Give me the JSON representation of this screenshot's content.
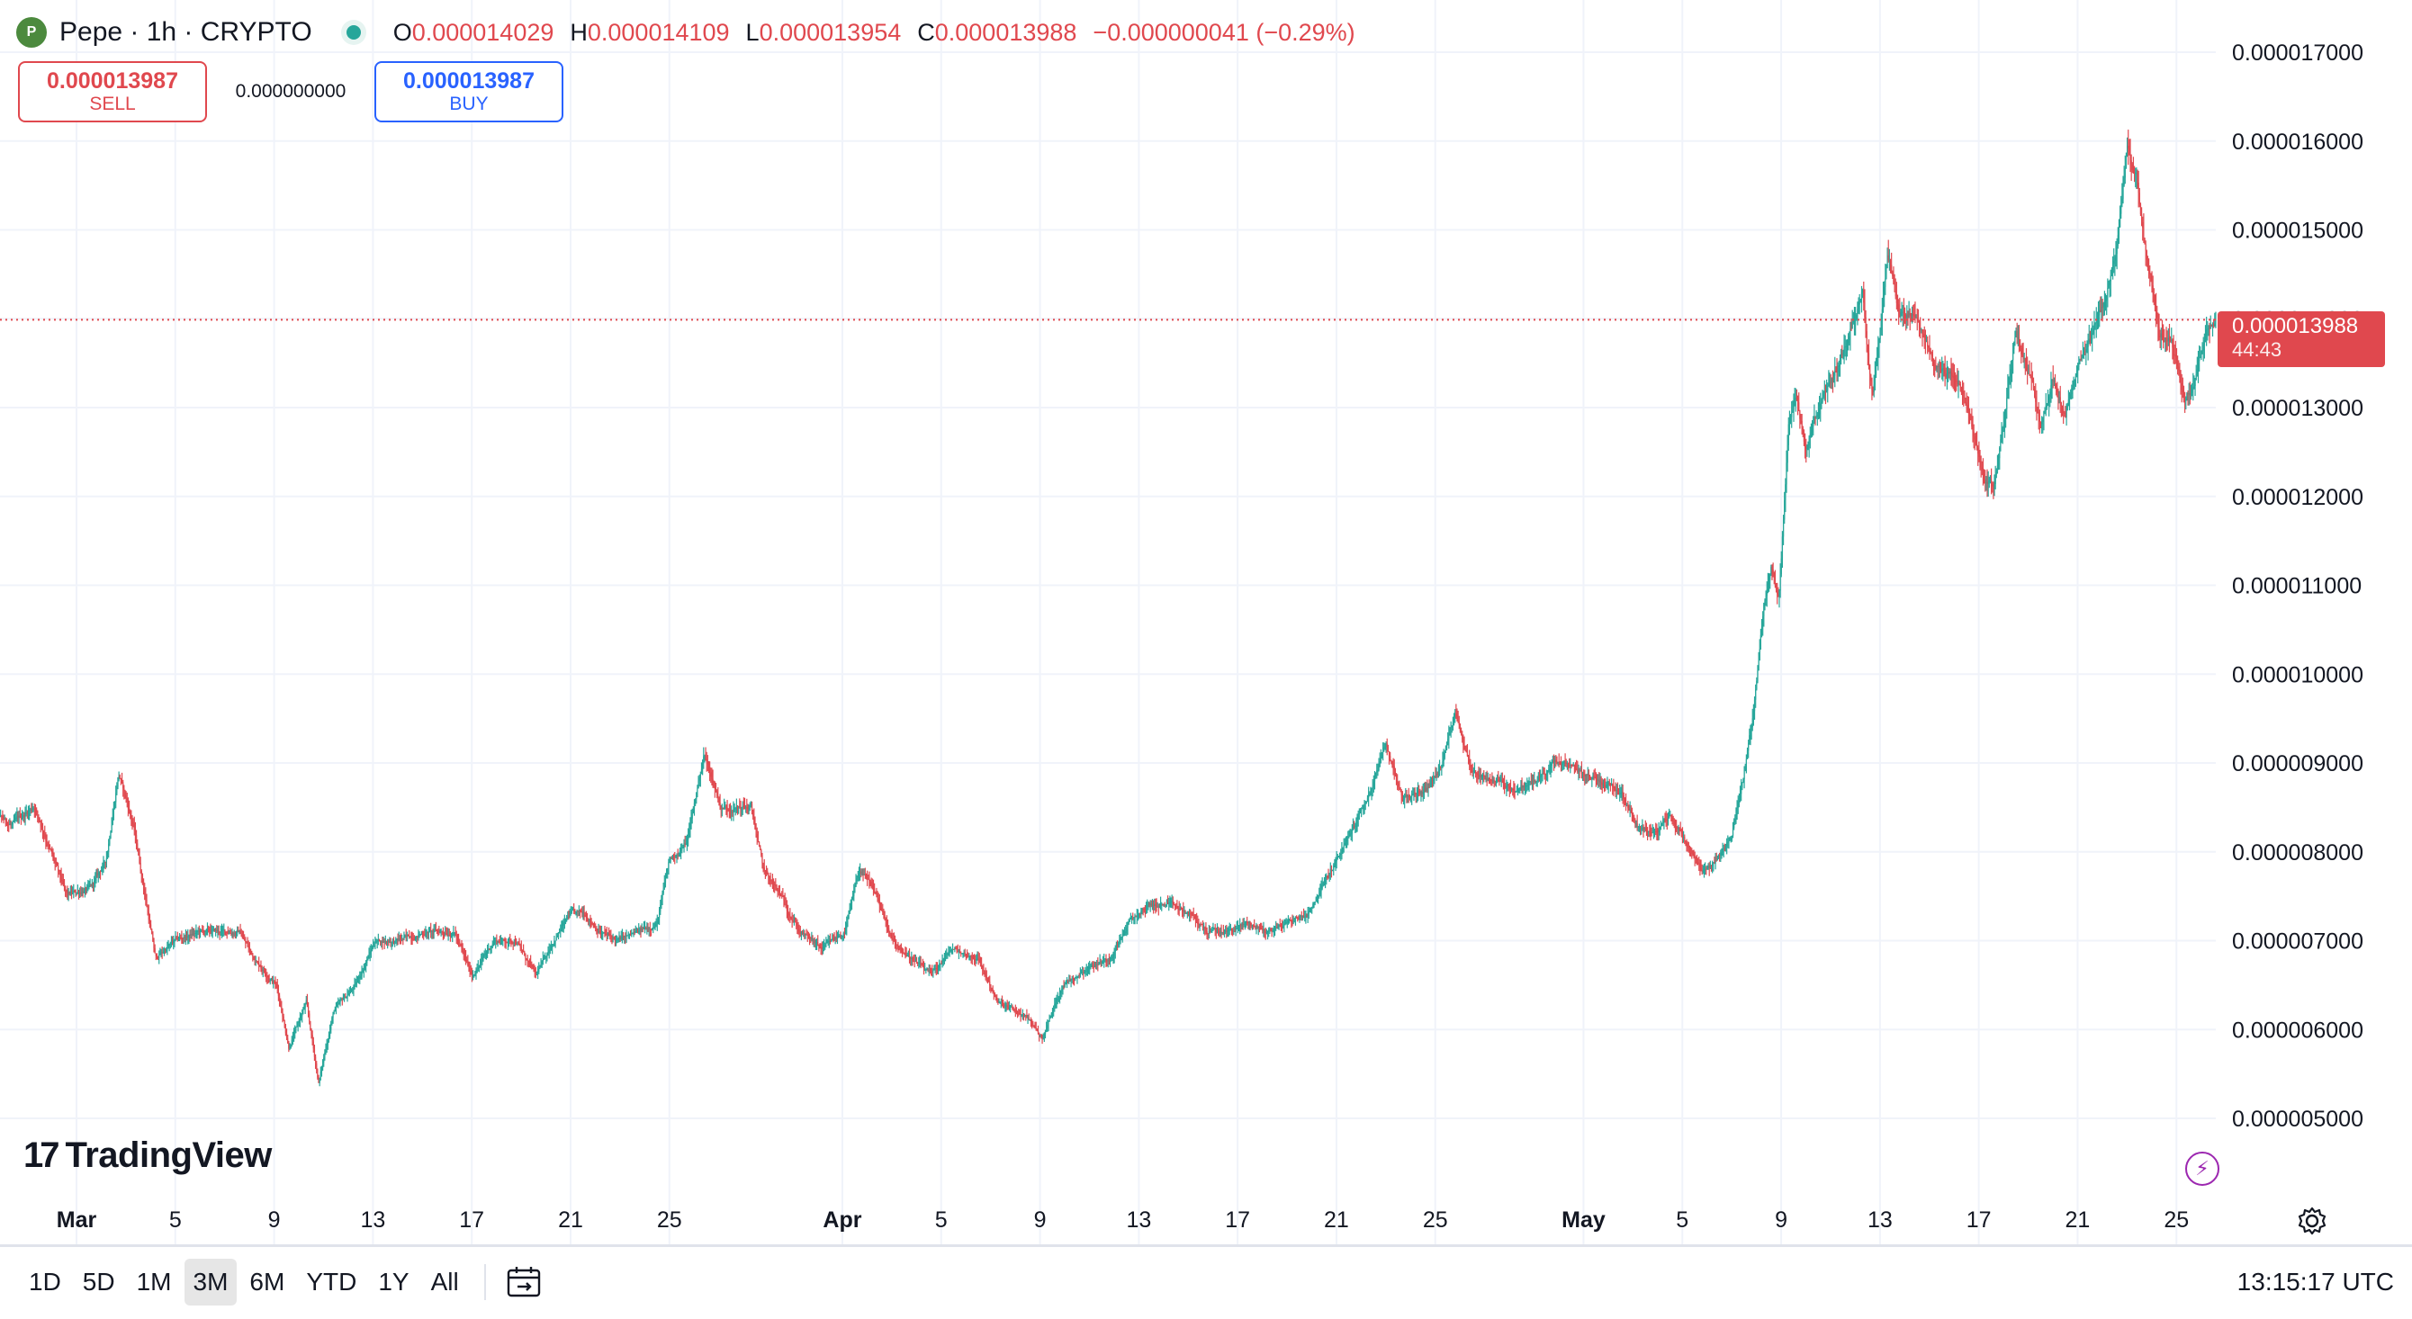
{
  "header": {
    "symbol_title": "Pepe · 1h · CRYPTO",
    "logo_glyph": "P",
    "ohlc": [
      {
        "key": "O",
        "value": "0.000014029"
      },
      {
        "key": "H",
        "value": "0.000014109"
      },
      {
        "key": "L",
        "value": "0.000013954"
      },
      {
        "key": "C",
        "value": "0.000013988"
      },
      {
        "key": "",
        "value": "−0.000000041 (−0.29%)"
      }
    ]
  },
  "trade": {
    "sell_price": "0.000013987",
    "sell_label": "SELL",
    "spread": "0.000000000",
    "buy_price": "0.000013987",
    "buy_label": "BUY"
  },
  "price_tag": {
    "price": "0.000013988",
    "countdown": "44:43"
  },
  "brand": {
    "mark": "17",
    "name": "TradingView"
  },
  "bottom_bar": {
    "ranges": [
      "1D",
      "5D",
      "1M",
      "3M",
      "6M",
      "YTD",
      "1Y",
      "All"
    ],
    "active_range": "3M",
    "clock": "13:15:17 UTC"
  },
  "colors": {
    "up": "#26a69a",
    "down": "#e0484e",
    "grid": "#f0f3fa",
    "axis_text": "#131722"
  },
  "chart_data": {
    "type": "candlestick",
    "title": "Pepe · 1h · CRYPTO",
    "xlabel": "",
    "ylabel": "",
    "ylim": [
      4.6e-06,
      1.74e-05
    ],
    "y_ticks": [
      "0.000017000",
      "0.000016000",
      "0.000015000",
      "0.000014000",
      "0.000013000",
      "0.000012000",
      "0.000011000",
      "0.000010000",
      "0.000009000",
      "0.000008000",
      "0.000007000",
      "0.000006000",
      "0.000005000"
    ],
    "y_tick_values": [
      1.7e-05,
      1.6e-05,
      1.5e-05,
      1.4e-05,
      1.3e-05,
      1.2e-05,
      1.1e-05,
      1e-05,
      9e-06,
      8e-06,
      7e-06,
      6e-06,
      5e-06
    ],
    "x_ticks": [
      {
        "label": "Mar",
        "day": 1,
        "major": true
      },
      {
        "label": "5",
        "day": 5,
        "major": false
      },
      {
        "label": "9",
        "day": 9,
        "major": false
      },
      {
        "label": "13",
        "day": 13,
        "major": false
      },
      {
        "label": "17",
        "day": 17,
        "major": false
      },
      {
        "label": "21",
        "day": 21,
        "major": false
      },
      {
        "label": "25",
        "day": 25,
        "major": false
      },
      {
        "label": "Apr",
        "day": 32,
        "major": true
      },
      {
        "label": "5",
        "day": 36,
        "major": false
      },
      {
        "label": "9",
        "day": 40,
        "major": false
      },
      {
        "label": "13",
        "day": 44,
        "major": false
      },
      {
        "label": "17",
        "day": 48,
        "major": false
      },
      {
        "label": "21",
        "day": 52,
        "major": false
      },
      {
        "label": "25",
        "day": 56,
        "major": false
      },
      {
        "label": "May",
        "day": 62,
        "major": true
      },
      {
        "label": "5",
        "day": 66,
        "major": false
      },
      {
        "label": "9",
        "day": 70,
        "major": false
      },
      {
        "label": "13",
        "day": 74,
        "major": false
      },
      {
        "label": "17",
        "day": 78,
        "major": false
      },
      {
        "label": "21",
        "day": 82,
        "major": false
      },
      {
        "label": "25",
        "day": 86,
        "major": false
      }
    ],
    "x_range_days": [
      -2.8,
      89.0
    ],
    "last_price": 1.3988e-05,
    "anchors": [
      [
        -2.7,
        8.45e-06
      ],
      [
        -1.6,
        8.3e-06
      ],
      [
        -0.7,
        8.52e-06
      ],
      [
        0.6,
        7.5e-06
      ],
      [
        1.6,
        7.6e-06
      ],
      [
        2.2,
        7.9e-06
      ],
      [
        2.7,
        8.9e-06
      ],
      [
        3.3,
        8.3e-06
      ],
      [
        4.2,
        6.8e-06
      ],
      [
        5.0,
        7e-06
      ],
      [
        6.0,
        7.1e-06
      ],
      [
        6.8,
        7.1e-06
      ],
      [
        7.6,
        7.1e-06
      ],
      [
        8.2,
        6.8e-06
      ],
      [
        9.1,
        6.5e-06
      ],
      [
        9.6,
        5.8e-06
      ],
      [
        10.3,
        6.3e-06
      ],
      [
        10.8,
        5.4e-06
      ],
      [
        11.4,
        6.2e-06
      ],
      [
        12.3,
        6.5e-06
      ],
      [
        13.1,
        7e-06
      ],
      [
        14.0,
        7e-06
      ],
      [
        15.2,
        7.1e-06
      ],
      [
        16.3,
        7.1e-06
      ],
      [
        17.0,
        6.6e-06
      ],
      [
        17.9,
        7e-06
      ],
      [
        18.8,
        7e-06
      ],
      [
        19.6,
        6.6e-06
      ],
      [
        20.3,
        7e-06
      ],
      [
        21.0,
        7.3e-06
      ],
      [
        21.6,
        7.3e-06
      ],
      [
        22.2,
        7.1e-06
      ],
      [
        22.9,
        7e-06
      ],
      [
        23.8,
        7.1e-06
      ],
      [
        24.5,
        7.2e-06
      ],
      [
        25.0,
        7.9e-06
      ],
      [
        25.7,
        8.1e-06
      ],
      [
        26.4,
        9.1e-06
      ],
      [
        27.1,
        8.5e-06
      ],
      [
        28.3,
        8.5e-06
      ],
      [
        28.8,
        7.8e-06
      ],
      [
        29.5,
        7.5e-06
      ],
      [
        30.3,
        7.1e-06
      ],
      [
        31.2,
        6.9e-06
      ],
      [
        32.1,
        7.1e-06
      ],
      [
        32.7,
        7.8e-06
      ],
      [
        33.4,
        7.5e-06
      ],
      [
        34.0,
        7e-06
      ],
      [
        34.8,
        6.8e-06
      ],
      [
        35.6,
        6.6e-06
      ],
      [
        36.4,
        6.9e-06
      ],
      [
        37.5,
        6.8e-06
      ],
      [
        38.3,
        6.3e-06
      ],
      [
        39.0,
        6.2e-06
      ],
      [
        39.6,
        6.1e-06
      ],
      [
        40.1,
        5.9e-06
      ],
      [
        40.9,
        6.5e-06
      ],
      [
        41.9,
        6.7e-06
      ],
      [
        42.8,
        6.8e-06
      ],
      [
        43.6,
        7.2e-06
      ],
      [
        44.4,
        7.4e-06
      ],
      [
        45.2,
        7.4e-06
      ],
      [
        46.0,
        7.3e-06
      ],
      [
        46.8,
        7.1e-06
      ],
      [
        47.6,
        7.1e-06
      ],
      [
        48.4,
        7.2e-06
      ],
      [
        49.2,
        7.1e-06
      ],
      [
        50.0,
        7.2e-06
      ],
      [
        50.8,
        7.3e-06
      ],
      [
        51.6,
        7.7e-06
      ],
      [
        52.4,
        8.1e-06
      ],
      [
        53.4,
        8.7e-06
      ],
      [
        54.0,
        9.2e-06
      ],
      [
        54.7,
        8.6e-06
      ],
      [
        55.6,
        8.7e-06
      ],
      [
        56.3,
        9e-06
      ],
      [
        56.8,
        9.6e-06
      ],
      [
        57.5,
        8.9e-06
      ],
      [
        58.5,
        8.8e-06
      ],
      [
        59.3,
        8.7e-06
      ],
      [
        60.1,
        8.8e-06
      ],
      [
        60.9,
        9e-06
      ],
      [
        61.8,
        8.9e-06
      ],
      [
        62.7,
        8.8e-06
      ],
      [
        63.5,
        8.7e-06
      ],
      [
        64.2,
        8.3e-06
      ],
      [
        64.9,
        8.2e-06
      ],
      [
        65.5,
        8.4e-06
      ],
      [
        66.2,
        8.1e-06
      ],
      [
        66.8,
        7.8e-06
      ],
      [
        67.4,
        7.9e-06
      ],
      [
        68.0,
        8.2e-06
      ],
      [
        68.5,
        8.9e-06
      ],
      [
        68.9,
        9.6e-06
      ],
      [
        69.3,
        1.08e-05
      ],
      [
        69.6,
        1.12e-05
      ],
      [
        69.9,
        1.08e-05
      ],
      [
        70.3,
        1.28e-05
      ],
      [
        70.6,
        1.31e-05
      ],
      [
        71.0,
        1.26e-05
      ],
      [
        71.5,
        1.3e-05
      ],
      [
        72.1,
        1.33e-05
      ],
      [
        72.7,
        1.38e-05
      ],
      [
        73.3,
        1.43e-05
      ],
      [
        73.7,
        1.31e-05
      ],
      [
        74.3,
        1.48e-05
      ],
      [
        74.8,
        1.41e-05
      ],
      [
        75.4,
        1.4e-05
      ],
      [
        76.0,
        1.36e-05
      ],
      [
        76.6,
        1.34e-05
      ],
      [
        77.2,
        1.33e-05
      ],
      [
        77.7,
        1.28e-05
      ],
      [
        78.2,
        1.22e-05
      ],
      [
        78.6,
        1.21e-05
      ],
      [
        79.0,
        1.28e-05
      ],
      [
        79.5,
        1.39e-05
      ],
      [
        80.0,
        1.34e-05
      ],
      [
        80.5,
        1.29e-05
      ],
      [
        81.0,
        1.33e-05
      ],
      [
        81.5,
        1.29e-05
      ],
      [
        82.0,
        1.34e-05
      ],
      [
        82.5,
        1.37e-05
      ],
      [
        83.1,
        1.42e-05
      ],
      [
        83.6,
        1.48e-05
      ],
      [
        84.0,
        1.59e-05
      ],
      [
        84.4,
        1.56e-05
      ],
      [
        84.8,
        1.47e-05
      ],
      [
        85.3,
        1.38e-05
      ],
      [
        85.8,
        1.38e-05
      ],
      [
        86.3,
        1.31e-05
      ],
      [
        86.7,
        1.32e-05
      ],
      [
        87.2,
        1.39e-05
      ],
      [
        87.6,
        1.39e-05
      ]
    ]
  }
}
